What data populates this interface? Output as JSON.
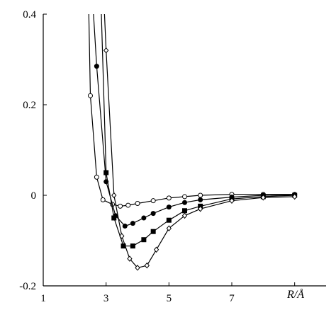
{
  "chart_data": {
    "type": "line",
    "title": "",
    "xlabel": "R/Å",
    "ylabel": "",
    "xlim": [
      1,
      10
    ],
    "ylim": [
      -0.2,
      0.4
    ],
    "grid": false,
    "x_ticks": [
      {
        "value": 1,
        "label": "1"
      },
      {
        "value": 3,
        "label": "3"
      },
      {
        "value": 5,
        "label": "5"
      },
      {
        "value": 7,
        "label": "7"
      },
      {
        "value": 9,
        "label": ""
      }
    ],
    "y_ticks": [
      {
        "value": 0.4,
        "label": "0.4"
      },
      {
        "value": 0.2,
        "label": "0.2"
      },
      {
        "value": 0.0,
        "label": "0"
      },
      {
        "value": -0.2,
        "label": "-0.2"
      }
    ],
    "series": [
      {
        "marker": "open-circle",
        "points": [
          [
            2.45,
            0.4
          ],
          [
            2.5,
            0.22
          ],
          [
            2.7,
            0.04
          ],
          [
            2.9,
            -0.01
          ],
          [
            3.2,
            -0.02
          ],
          [
            3.45,
            -0.024
          ],
          [
            3.7,
            -0.022
          ],
          [
            4.0,
            -0.018
          ],
          [
            4.5,
            -0.012
          ],
          [
            5.0,
            -0.006
          ],
          [
            5.5,
            -0.003
          ],
          [
            6.0,
            0.0
          ],
          [
            7.0,
            0.002
          ],
          [
            8.0,
            0.002
          ],
          [
            9.0,
            0.002
          ]
        ]
      },
      {
        "marker": "filled-circle",
        "points": [
          [
            2.6,
            0.4
          ],
          [
            2.7,
            0.285
          ],
          [
            3.0,
            0.03
          ],
          [
            3.3,
            -0.045
          ],
          [
            3.6,
            -0.068
          ],
          [
            3.85,
            -0.062
          ],
          [
            4.2,
            -0.05
          ],
          [
            4.5,
            -0.04
          ],
          [
            5.0,
            -0.026
          ],
          [
            5.5,
            -0.016
          ],
          [
            6.0,
            -0.01
          ],
          [
            7.0,
            -0.004
          ],
          [
            8.0,
            0.0
          ],
          [
            9.0,
            0.001
          ]
        ]
      },
      {
        "marker": "filled-square",
        "points": [
          [
            2.85,
            0.4
          ],
          [
            3.0,
            0.05
          ],
          [
            3.25,
            -0.05
          ],
          [
            3.55,
            -0.112
          ],
          [
            3.85,
            -0.112
          ],
          [
            4.2,
            -0.098
          ],
          [
            4.5,
            -0.08
          ],
          [
            5.0,
            -0.055
          ],
          [
            5.5,
            -0.034
          ],
          [
            6.0,
            -0.024
          ],
          [
            7.0,
            -0.008
          ],
          [
            8.0,
            -0.003
          ],
          [
            9.0,
            0.0
          ]
        ]
      },
      {
        "marker": "open-diamond",
        "points": [
          [
            2.95,
            0.4
          ],
          [
            3.0,
            0.32
          ],
          [
            3.25,
            0.0
          ],
          [
            3.5,
            -0.09
          ],
          [
            3.75,
            -0.14
          ],
          [
            4.0,
            -0.16
          ],
          [
            4.3,
            -0.155
          ],
          [
            4.6,
            -0.12
          ],
          [
            5.0,
            -0.073
          ],
          [
            5.5,
            -0.045
          ],
          [
            6.0,
            -0.03
          ],
          [
            7.0,
            -0.012
          ],
          [
            8.0,
            -0.005
          ],
          [
            9.0,
            -0.003
          ]
        ]
      }
    ]
  }
}
